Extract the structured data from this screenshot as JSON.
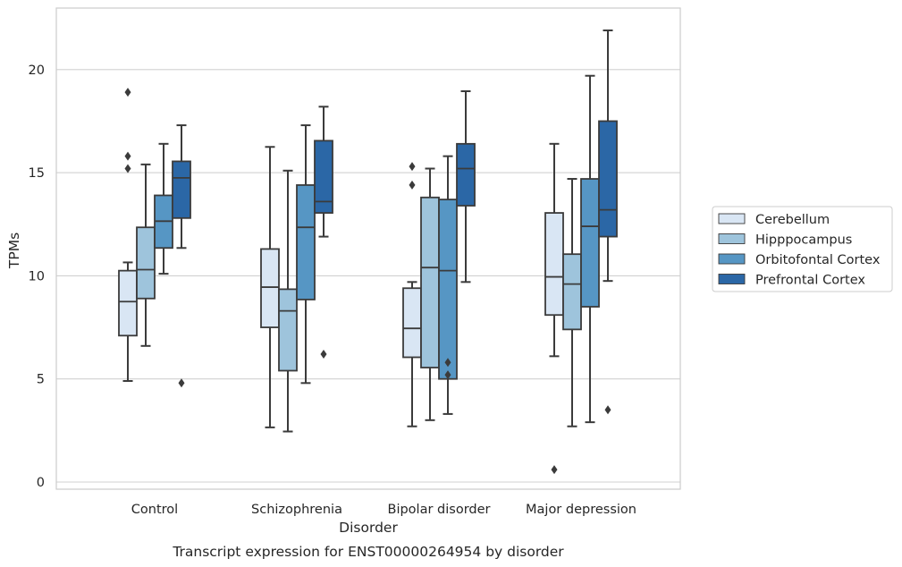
{
  "chart_data": {
    "type": "box",
    "title": "",
    "caption": "Transcript expression for ENST00000264954 by disorder",
    "xlabel": "Disorder",
    "ylabel": "TPMs",
    "ylim": [
      -0.4,
      23
    ],
    "yticks": [
      0,
      5,
      10,
      15,
      20
    ],
    "grid": "horizontal",
    "legend_position": "right",
    "categories": [
      "Control",
      "Schizophrenia",
      "Bipolar disorder",
      "Major depression"
    ],
    "series": [
      {
        "name": "Cerebellum",
        "color": "#d9e6f4",
        "boxes": [
          {
            "whislo": 4.9,
            "q1": 7.1,
            "med": 8.75,
            "q3": 10.25,
            "whishi": 10.65,
            "fliers": [
              15.2,
              15.8,
              18.9
            ]
          },
          {
            "whislo": 2.65,
            "q1": 7.5,
            "med": 9.45,
            "q3": 11.3,
            "whishi": 16.25,
            "fliers": []
          },
          {
            "whislo": 2.7,
            "q1": 6.05,
            "med": 7.45,
            "q3": 9.4,
            "whishi": 9.7,
            "fliers": [
              14.4,
              15.3
            ]
          },
          {
            "whislo": 6.1,
            "q1": 8.1,
            "med": 9.95,
            "q3": 13.05,
            "whishi": 16.4,
            "fliers": [
              0.6
            ]
          }
        ]
      },
      {
        "name": "Hipppocampus",
        "color": "#9ec4dc",
        "boxes": [
          {
            "whislo": 6.6,
            "q1": 8.9,
            "med": 10.3,
            "q3": 12.35,
            "whishi": 15.4,
            "fliers": []
          },
          {
            "whislo": 2.45,
            "q1": 5.4,
            "med": 8.3,
            "q3": 9.35,
            "whishi": 15.1,
            "fliers": []
          },
          {
            "whislo": 3.0,
            "q1": 5.55,
            "med": 10.4,
            "q3": 13.8,
            "whishi": 15.2,
            "fliers": []
          },
          {
            "whislo": 2.7,
            "q1": 7.4,
            "med": 9.6,
            "q3": 11.05,
            "whishi": 14.7,
            "fliers": []
          }
        ]
      },
      {
        "name": "Orbitofontal Cortex",
        "color": "#5696c4",
        "boxes": [
          {
            "whislo": 10.1,
            "q1": 11.35,
            "med": 12.65,
            "q3": 13.9,
            "whishi": 16.4,
            "fliers": []
          },
          {
            "whislo": 4.8,
            "q1": 8.85,
            "med": 12.35,
            "q3": 14.4,
            "whishi": 17.3,
            "fliers": []
          },
          {
            "whislo": 3.3,
            "q1": 5.0,
            "med": 10.25,
            "q3": 13.7,
            "whishi": 15.8,
            "fliers": [
              5.2,
              5.8
            ]
          },
          {
            "whislo": 2.9,
            "q1": 8.5,
            "med": 12.4,
            "q3": 14.7,
            "whishi": 19.7,
            "fliers": []
          }
        ]
      },
      {
        "name": "Prefrontal Cortex",
        "color": "#2b67a6",
        "boxes": [
          {
            "whislo": 11.35,
            "q1": 12.8,
            "med": 14.75,
            "q3": 15.55,
            "whishi": 17.3,
            "fliers": [
              4.8
            ]
          },
          {
            "whislo": 11.9,
            "q1": 13.05,
            "med": 13.6,
            "q3": 16.55,
            "whishi": 18.2,
            "fliers": [
              6.2
            ]
          },
          {
            "whislo": 9.7,
            "q1": 13.4,
            "med": 15.2,
            "q3": 16.4,
            "whishi": 18.95,
            "fliers": []
          },
          {
            "whislo": 9.75,
            "q1": 11.9,
            "med": 13.2,
            "q3": 17.5,
            "whishi": 21.9,
            "fliers": [
              3.5
            ]
          }
        ]
      }
    ]
  }
}
